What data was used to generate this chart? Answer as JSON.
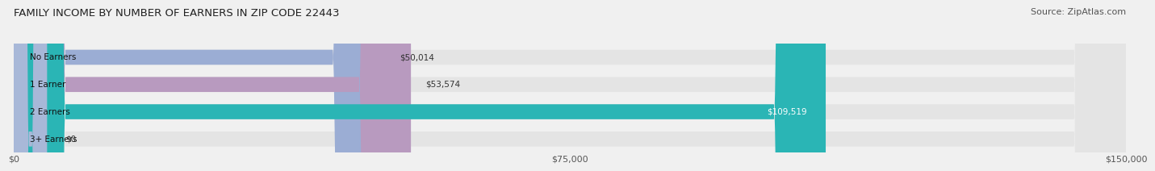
{
  "title": "FAMILY INCOME BY NUMBER OF EARNERS IN ZIP CODE 22443",
  "source": "Source: ZipAtlas.com",
  "categories": [
    "No Earners",
    "1 Earner",
    "2 Earners",
    "3+ Earners"
  ],
  "values": [
    50014,
    53574,
    109519,
    0
  ],
  "bar_colors": [
    "#9badd4",
    "#b89abf",
    "#2ab5b5",
    "#a8b8d8"
  ],
  "x_max": 150000,
  "x_ticks": [
    0,
    75000,
    150000
  ],
  "x_tick_labels": [
    "$0",
    "$75,000",
    "$150,000"
  ],
  "bar_height": 0.55,
  "background_color": "#f0f0f0",
  "bar_bg_color": "#e4e4e4",
  "title_fontsize": 9.5,
  "source_fontsize": 8,
  "category_fontsize": 7.5,
  "value_label_fontsize": 7.5,
  "tick_fontsize": 8
}
